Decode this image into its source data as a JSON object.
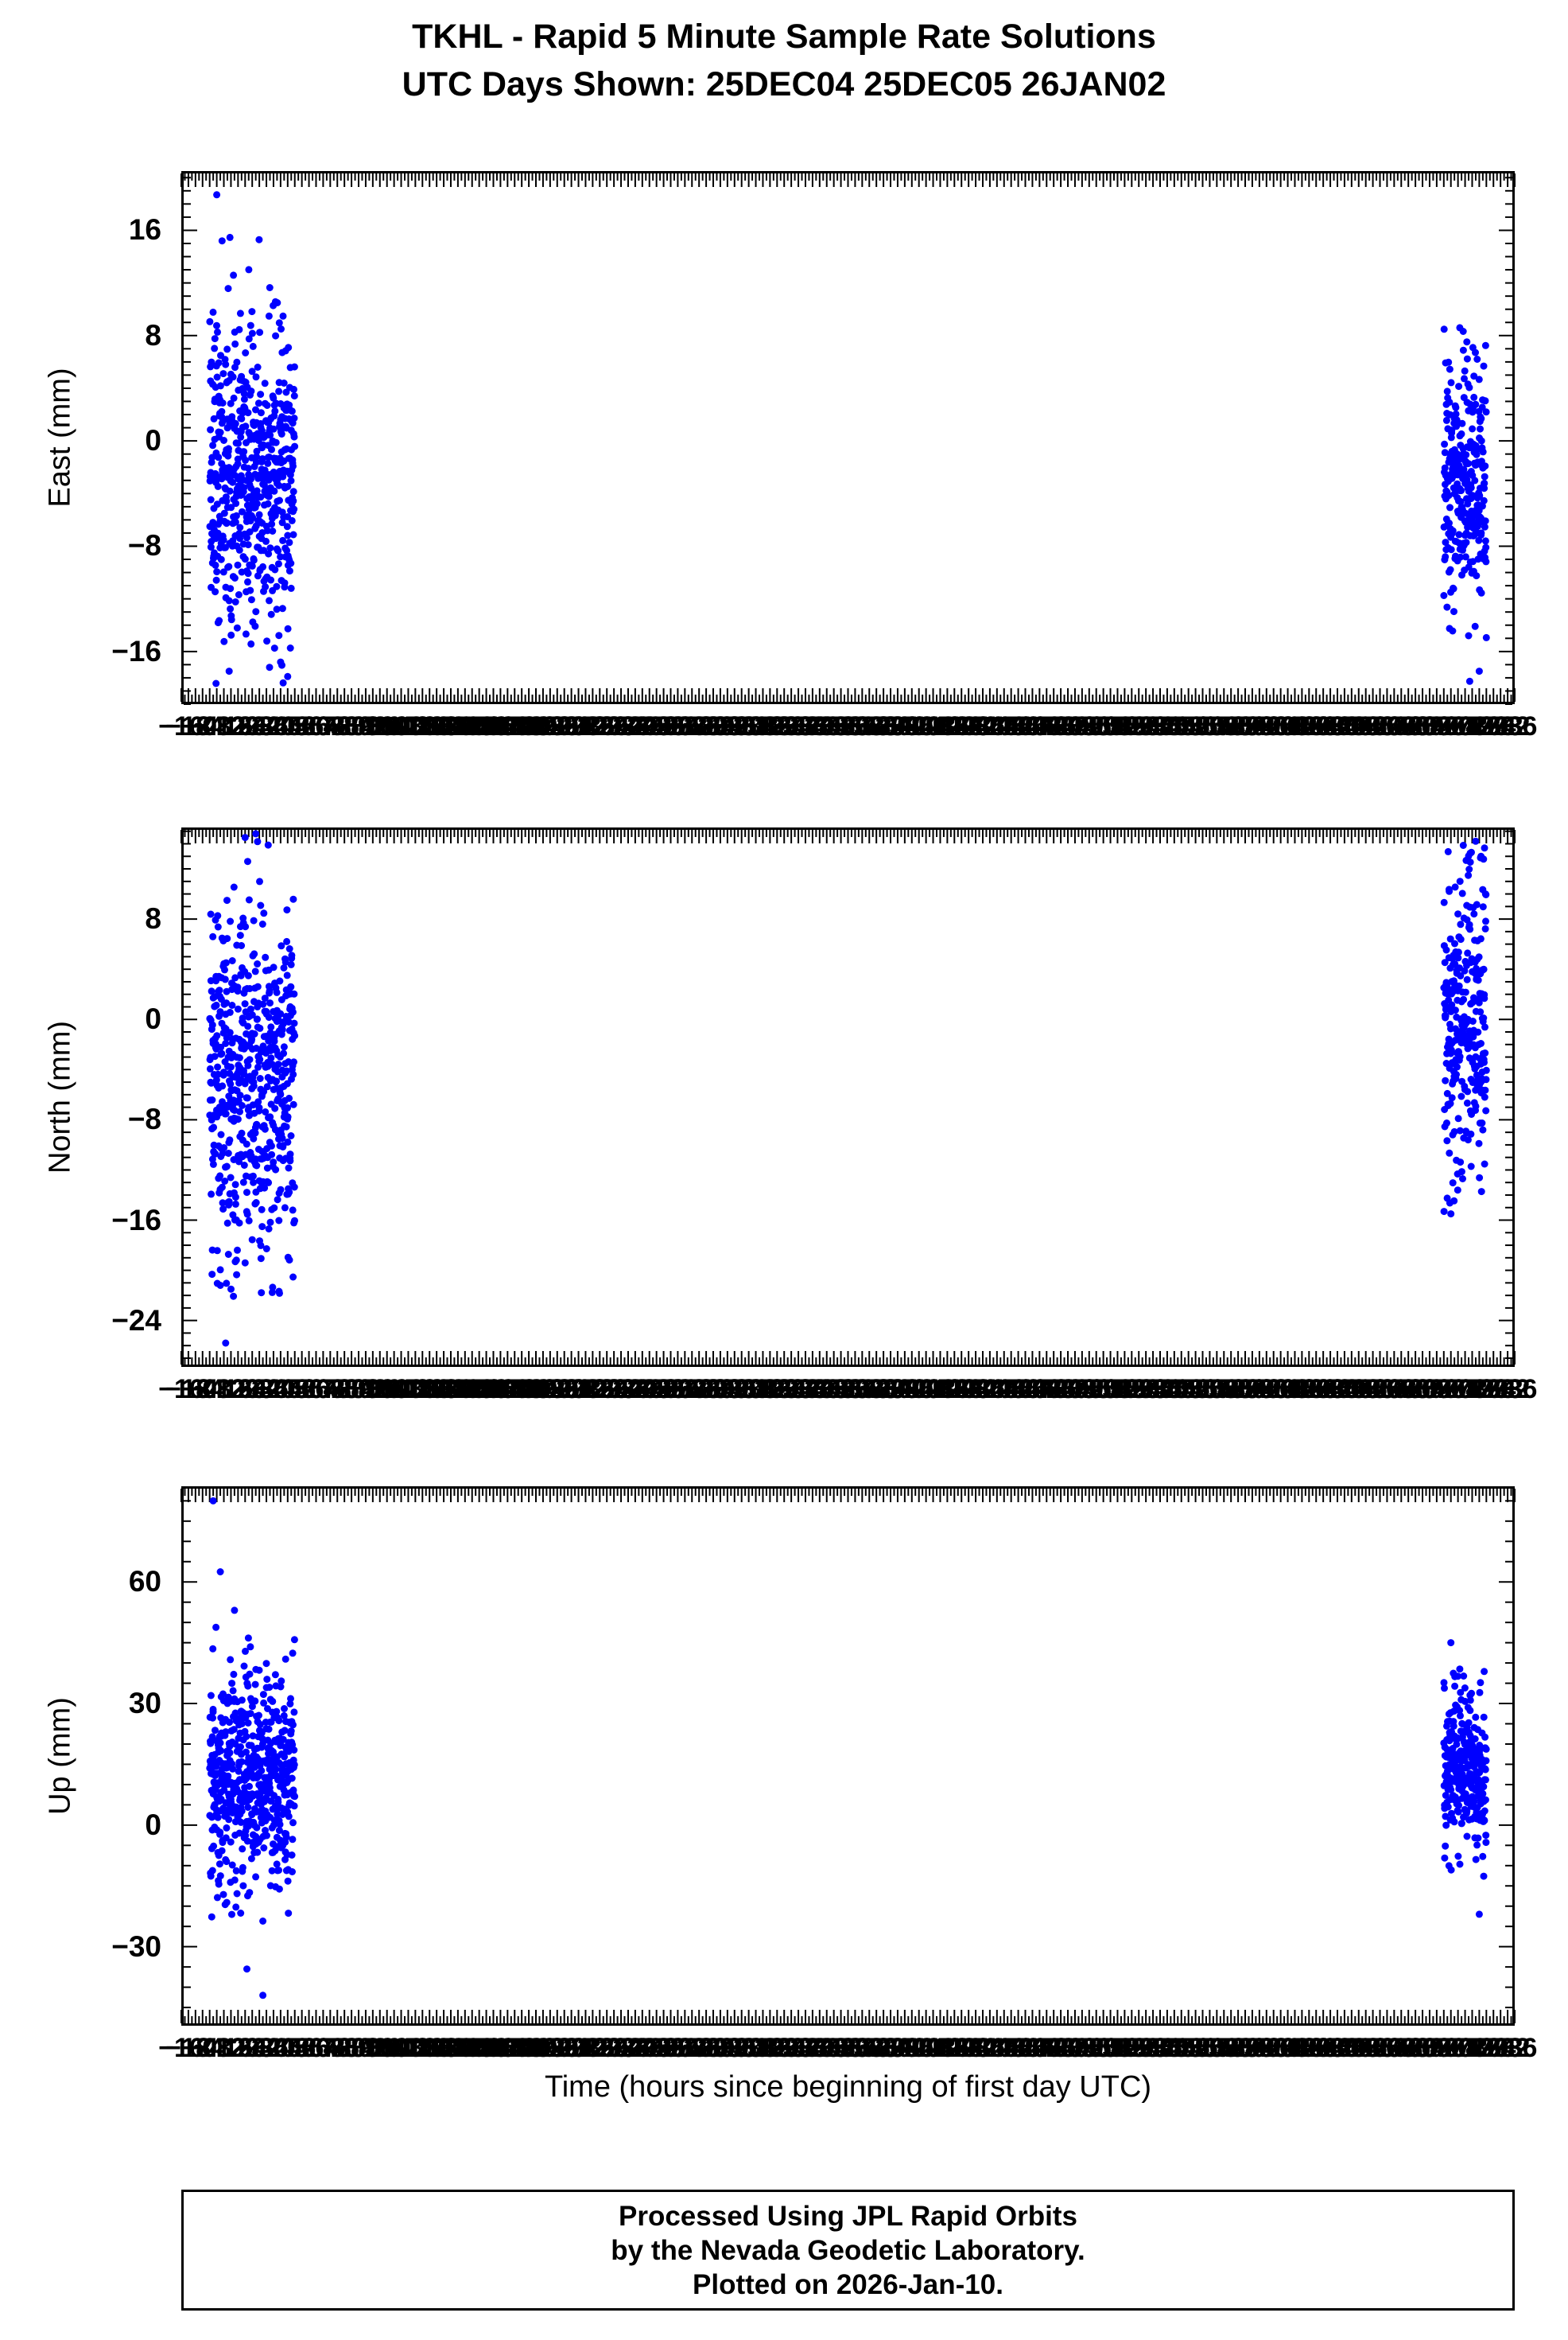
{
  "header": {
    "title_line1": "TKHL - Rapid 5 Minute Sample Rate Solutions",
    "title_line2": "UTC Days Shown:  25DEC04 25DEC05 26JAN02"
  },
  "xaxis_label": "Time (hours since beginning of first day UTC)",
  "footer": {
    "line1": "Processed Using JPL Rapid Orbits",
    "line2": "by the Nevada Geodetic Laboratory.",
    "line3": "Plotted on 2026-Jan-10."
  },
  "style": {
    "point_color": "#0000ff",
    "axis_color": "#000000",
    "background": "#ffffff"
  },
  "chart_data": [
    {
      "type": "scatter",
      "ylabel": "East (mm)",
      "xlim": [
        -16,
        736
      ],
      "ylim": [
        -20,
        20.5
      ],
      "yticks": [
        16,
        8,
        0,
        -8,
        -16
      ],
      "ytick_minor_step": 1,
      "ytick_major_mod": 8,
      "xtick_step": 4,
      "xtick_minor_step": 2,
      "clusters": [
        {
          "x_start": 0,
          "x_end": 48,
          "n": 576,
          "y_mean": -2.5,
          "y_sd": 5.8,
          "y_min": -18.5,
          "y_max": 18.7,
          "extra_points": [
            [
              4,
              18.7
            ],
            [
              7,
              15.2
            ],
            [
              11,
              -17.5
            ],
            [
              40,
              -16.8
            ],
            [
              44,
              -17.9
            ]
          ]
        },
        {
          "x_start": 696,
          "x_end": 720,
          "n": 288,
          "y_mean": -3.5,
          "y_sd": 4.5,
          "y_min": -18.5,
          "y_max": 8.6,
          "extra_points": [
            [
              705,
              8.6
            ],
            [
              716,
              -17.5
            ],
            [
              710,
              -14.8
            ]
          ]
        }
      ]
    },
    {
      "type": "scatter",
      "ylabel": "North (mm)",
      "xlim": [
        -16,
        736
      ],
      "ylim": [
        -27.7,
        15.3
      ],
      "yticks": [
        8,
        0,
        -8,
        -16,
        -24
      ],
      "ytick_minor_step": 1,
      "ytick_major_mod": 8,
      "xtick_step": 4,
      "xtick_minor_step": 2,
      "clusters": [
        {
          "x_start": 0,
          "x_end": 48,
          "n": 576,
          "y_mean": -5.5,
          "y_sd": 7.0,
          "y_min": -22.5,
          "y_max": 14.8,
          "extra_points": [
            [
              9,
              -25.8
            ],
            [
              6,
              -21.2
            ],
            [
              20,
              14.5
            ],
            [
              26,
              14.8
            ],
            [
              33,
              13.9
            ]
          ]
        },
        {
          "x_start": 696,
          "x_end": 720,
          "n": 288,
          "y_mean": -0.8,
          "y_sd": 6.0,
          "y_min": -16.0,
          "y_max": 14.2,
          "extra_points": [
            [
              714,
              14.2
            ],
            [
              717,
              13.0
            ],
            [
              700,
              -15.5
            ]
          ]
        }
      ]
    },
    {
      "type": "scatter",
      "ylabel": "Up (mm)",
      "xlim": [
        -16,
        736
      ],
      "ylim": [
        -49.5,
        83.6
      ],
      "yticks": [
        60,
        30,
        0,
        -30
      ],
      "ytick_minor_step": 5,
      "ytick_major_mod": 30,
      "xtick_step": 4,
      "xtick_minor_step": 2,
      "clusters": [
        {
          "x_start": 0,
          "x_end": 48,
          "n": 576,
          "y_mean": 12.0,
          "y_sd": 13.0,
          "y_min": -38.0,
          "y_max": 58.0,
          "extra_points": [
            [
              2,
              80.0
            ],
            [
              6,
              62.5
            ],
            [
              14,
              53.0
            ],
            [
              30,
              -42.0
            ],
            [
              21,
              -35.5
            ]
          ]
        },
        {
          "x_start": 696,
          "x_end": 720,
          "n": 288,
          "y_mean": 13.0,
          "y_sd": 10.0,
          "y_min": -18.0,
          "y_max": 38.0,
          "extra_points": [
            [
              700,
              45.0
            ],
            [
              705,
              38.5
            ],
            [
              716,
              -22.0
            ]
          ]
        }
      ]
    }
  ],
  "layout_note": ""
}
